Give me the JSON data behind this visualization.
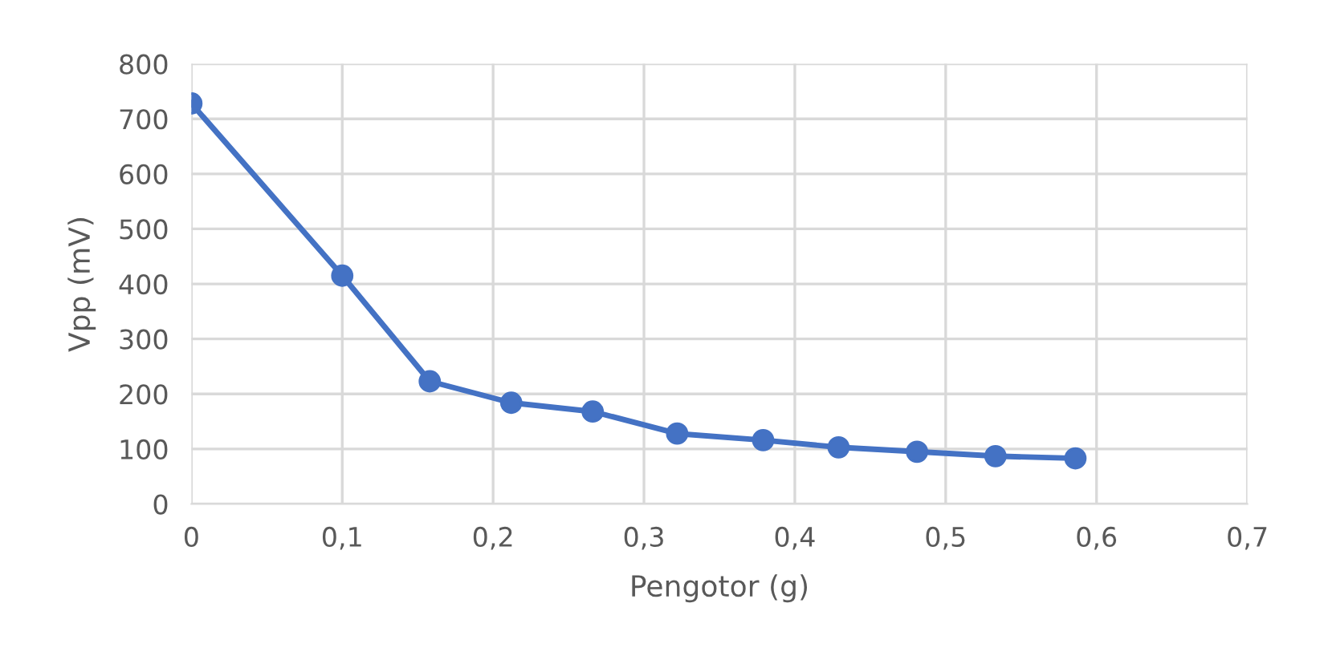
{
  "chart_data": {
    "type": "line",
    "xlabel": "Pengotor (g)",
    "ylabel": "Vpp (mV)",
    "x": [
      0,
      0.1,
      0.158,
      0.212,
      0.266,
      0.322,
      0.379,
      0.429,
      0.481,
      0.533,
      0.586
    ],
    "series": [
      {
        "color": "#4472c4",
        "values": [
          728,
          415,
          223,
          184,
          168,
          128,
          116,
          103,
          95,
          87,
          83
        ]
      }
    ],
    "xlim": [
      0,
      0.7
    ],
    "xticks": [
      0,
      {
        "value": 0.1,
        "label": "0,1"
      },
      {
        "value": 0.2,
        "label": "0,2"
      },
      {
        "value": 0.3,
        "label": "0,3"
      },
      {
        "value": 0.4,
        "label": "0,4"
      },
      {
        "value": 0.5,
        "label": "0,5"
      },
      {
        "value": 0.6,
        "label": "0,6"
      },
      {
        "value": 0.7,
        "label": "0,7"
      }
    ],
    "ylim": [
      0,
      800
    ],
    "yticks": [
      0,
      100,
      200,
      300,
      400,
      500,
      600,
      700,
      800
    ],
    "grid": true,
    "marker": "circle",
    "line_style": "solid"
  }
}
